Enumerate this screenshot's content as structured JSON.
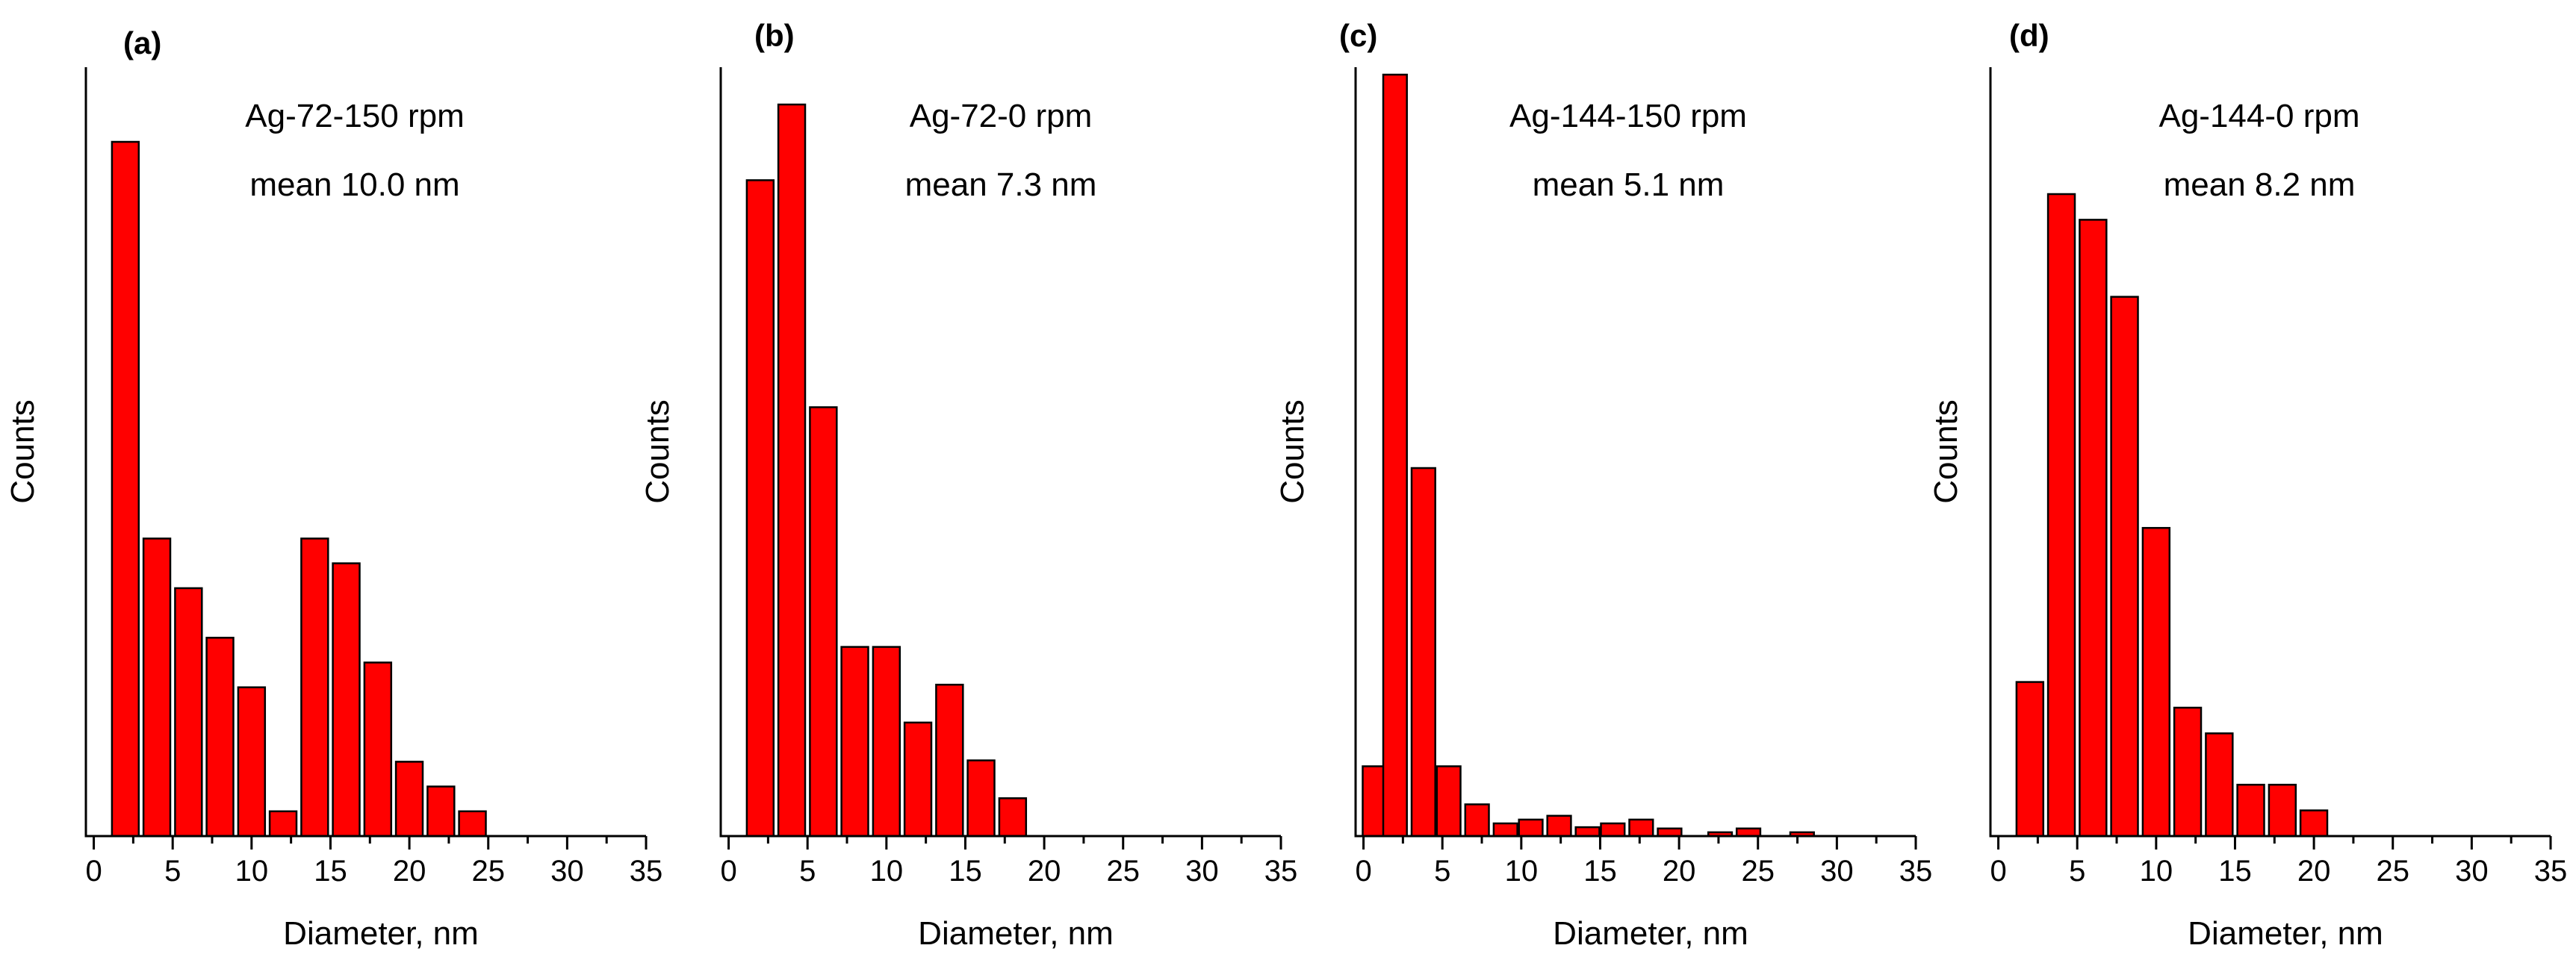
{
  "chart_data": [
    {
      "type": "bar",
      "panel_label": "(a)",
      "title": "Ag-72-150 rpm",
      "annotation": "mean 10.0 nm",
      "xlabel": "Diameter, nm",
      "ylabel": "Counts",
      "xlim": [
        -0.5,
        35
      ],
      "xticks": [
        "0",
        "5",
        "10",
        "15",
        "20",
        "25",
        "30",
        "35"
      ],
      "bin_width": 2,
      "bin_centers": [
        2,
        4,
        6,
        8,
        10,
        12,
        14,
        16,
        18,
        20,
        22,
        24
      ],
      "values": [
        28,
        12,
        10,
        8,
        6,
        1,
        12,
        11,
        7,
        3,
        2,
        1
      ]
    },
    {
      "type": "bar",
      "panel_label": "(b)",
      "title": "Ag-72-0 rpm",
      "annotation": "mean 7.3 nm",
      "xlabel": "Diameter, nm",
      "ylabel": "Counts",
      "xlim": [
        -0.5,
        35
      ],
      "xticks": [
        "0",
        "5",
        "10",
        "15",
        "20",
        "25",
        "30",
        "35"
      ],
      "bin_width": 2,
      "bin_centers": [
        2,
        4,
        6,
        8,
        10,
        12,
        14,
        16,
        18
      ],
      "values": [
        26,
        29,
        17,
        7.5,
        7.5,
        4.5,
        6,
        3,
        1.5
      ]
    },
    {
      "type": "bar",
      "panel_label": "(c)",
      "title": "Ag-144-150 rpm",
      "annotation": "mean 5.1 nm",
      "xlabel": "Diameter, nm",
      "ylabel": "Counts",
      "xlim": [
        -0.5,
        35
      ],
      "xticks": [
        "0",
        "5",
        "10",
        "15",
        "20",
        "25",
        "30",
        "35"
      ],
      "bin_width": 1.8,
      "bin_centers": [
        0.7,
        2,
        3.8,
        5.4,
        7.2,
        9,
        10.6,
        12.4,
        14.2,
        15.8,
        17.6,
        19.4,
        22.6,
        24.4,
        27.8
      ],
      "values": [
        5.5,
        60,
        29,
        5.5,
        2.5,
        1,
        1.3,
        1.6,
        0.7,
        1,
        1.3,
        0.6,
        0.3,
        0.6,
        0.3
      ]
    },
    {
      "type": "bar",
      "panel_label": "(d)",
      "title": "Ag-144-0 rpm",
      "annotation": "mean 8.2 nm",
      "xlabel": "Diameter, nm",
      "ylabel": "Counts",
      "xlim": [
        -0.5,
        35
      ],
      "xticks": [
        "0",
        "5",
        "10",
        "15",
        "20",
        "25",
        "30",
        "35"
      ],
      "bin_width": 2,
      "bin_centers": [
        2,
        4,
        6,
        8,
        10,
        12,
        14,
        16,
        18,
        20
      ],
      "values": [
        12,
        50,
        48,
        42,
        24,
        10,
        8,
        4,
        4,
        2
      ]
    }
  ]
}
